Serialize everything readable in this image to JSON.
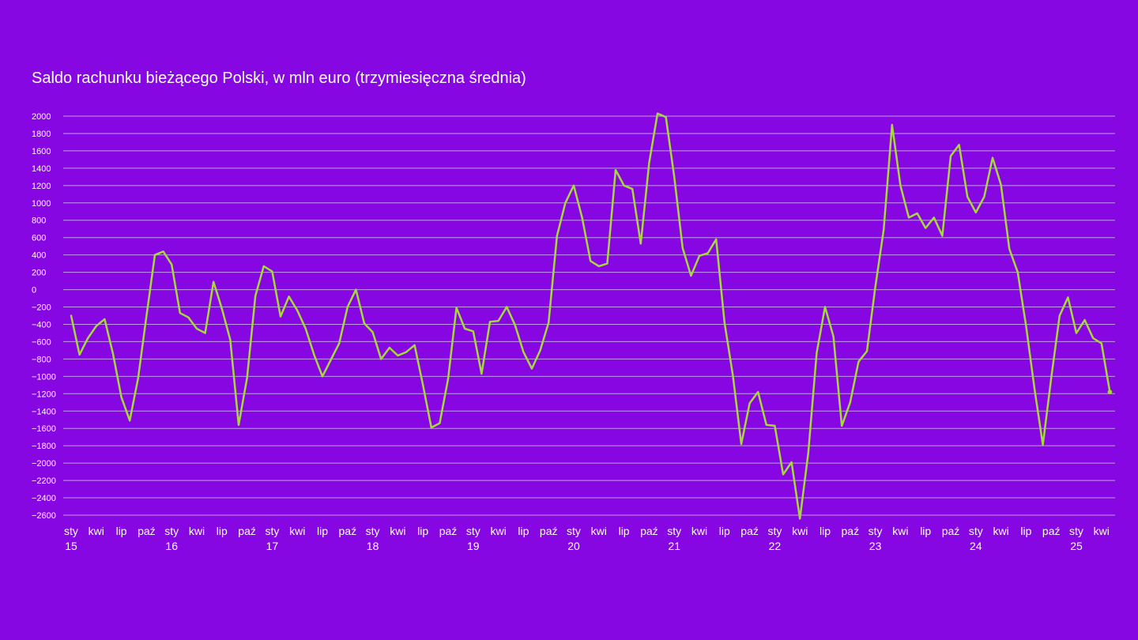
{
  "colors": {
    "background": "#8707E2",
    "line": "#A6D93A",
    "grid": "#C49BEA",
    "text": "#FFFFFF"
  },
  "chart_data": {
    "type": "line",
    "title": "Saldo rachunku bieżącego Polski, w mln euro (trzymiesięczna średnia)",
    "xlabel": "",
    "ylabel": "",
    "ylim": [
      -2600,
      2000
    ],
    "yticks": [
      2000,
      1800,
      1600,
      1400,
      1200,
      1000,
      800,
      600,
      400,
      200,
      0,
      -200,
      -400,
      -600,
      -800,
      -1000,
      -1200,
      -1400,
      -1600,
      -1800,
      -2000,
      -2200,
      -2400,
      -2600
    ],
    "ytick_labels": [
      "2000",
      "1800",
      "1600",
      "1400",
      "1200",
      "1000",
      "800",
      "600",
      "400",
      "200",
      "0",
      "−200",
      "−400",
      "−600",
      "−800",
      "−1000",
      "−1200",
      "−1400",
      "−1600",
      "−1800",
      "−2000",
      "−2200",
      "−2400",
      "−2600"
    ],
    "grid": true,
    "legend": "none",
    "x_start": "2015-01",
    "x_ticks": [
      {
        "month_index": 0,
        "label": "sty",
        "year": "15"
      },
      {
        "month_index": 3,
        "label": "kwi"
      },
      {
        "month_index": 6,
        "label": "lip"
      },
      {
        "month_index": 9,
        "label": "paź"
      },
      {
        "month_index": 12,
        "label": "sty",
        "year": "16"
      },
      {
        "month_index": 15,
        "label": "kwi"
      },
      {
        "month_index": 18,
        "label": "lip"
      },
      {
        "month_index": 21,
        "label": "paź"
      },
      {
        "month_index": 24,
        "label": "sty",
        "year": "17"
      },
      {
        "month_index": 27,
        "label": "kwi"
      },
      {
        "month_index": 30,
        "label": "lip"
      },
      {
        "month_index": 33,
        "label": "paź"
      },
      {
        "month_index": 36,
        "label": "sty",
        "year": "18"
      },
      {
        "month_index": 39,
        "label": "kwi"
      },
      {
        "month_index": 42,
        "label": "lip"
      },
      {
        "month_index": 45,
        "label": "paź"
      },
      {
        "month_index": 48,
        "label": "sty",
        "year": "19"
      },
      {
        "month_index": 51,
        "label": "kwi"
      },
      {
        "month_index": 54,
        "label": "lip"
      },
      {
        "month_index": 57,
        "label": "paź"
      },
      {
        "month_index": 60,
        "label": "sty",
        "year": "20"
      },
      {
        "month_index": 63,
        "label": "kwi"
      },
      {
        "month_index": 66,
        "label": "lip"
      },
      {
        "month_index": 69,
        "label": "paź"
      },
      {
        "month_index": 72,
        "label": "sty",
        "year": "21"
      },
      {
        "month_index": 75,
        "label": "kwi"
      },
      {
        "month_index": 78,
        "label": "lip"
      },
      {
        "month_index": 81,
        "label": "paź"
      },
      {
        "month_index": 84,
        "label": "sty",
        "year": "22"
      },
      {
        "month_index": 87,
        "label": "kwi"
      },
      {
        "month_index": 90,
        "label": "lip"
      },
      {
        "month_index": 93,
        "label": "paź"
      },
      {
        "month_index": 96,
        "label": "sty",
        "year": "23"
      },
      {
        "month_index": 99,
        "label": "kwi"
      },
      {
        "month_index": 102,
        "label": "lip"
      },
      {
        "month_index": 105,
        "label": "paź"
      },
      {
        "month_index": 108,
        "label": "sty",
        "year": "24"
      },
      {
        "month_index": 111,
        "label": "kwi"
      },
      {
        "month_index": 114,
        "label": "lip"
      },
      {
        "month_index": 117,
        "label": "paź"
      },
      {
        "month_index": 120,
        "label": "sty",
        "year": "25"
      },
      {
        "month_index": 123,
        "label": "kwi"
      }
    ],
    "series": [
      {
        "values": [
          -300,
          -750,
          -560,
          -420,
          -340,
          -740,
          -1240,
          -1510,
          -1020,
          -300,
          400,
          440,
          290,
          -270,
          -320,
          -450,
          -500,
          90,
          -220,
          -580,
          -1560,
          -1020,
          -70,
          270,
          210,
          -310,
          -80,
          -240,
          -450,
          -750,
          -1000,
          -810,
          -620,
          -200,
          0,
          -390,
          -490,
          -800,
          -670,
          -760,
          -720,
          -640,
          -1100,
          -1590,
          -1540,
          -1030,
          -210,
          -450,
          -480,
          -970,
          -370,
          -360,
          -200,
          -410,
          -720,
          -910,
          -700,
          -380,
          620,
          1000,
          1200,
          830,
          330,
          270,
          300,
          1380,
          1200,
          1160,
          530,
          1460,
          2030,
          1990,
          1300,
          480,
          160,
          390,
          420,
          580,
          -380,
          -990,
          -1780,
          -1310,
          -1180,
          -1560,
          -1570,
          -2130,
          -1990,
          -2640,
          -1880,
          -730,
          -200,
          -540,
          -1570,
          -1300,
          -830,
          -710,
          30,
          690,
          1900,
          1200,
          830,
          880,
          710,
          830,
          620,
          1540,
          1670,
          1070,
          890,
          1070,
          1520,
          1210,
          470,
          200,
          -420,
          -1140,
          -1790,
          -1020,
          -300,
          -90,
          -500,
          -350,
          -560,
          -620,
          -1180
        ]
      }
    ]
  }
}
